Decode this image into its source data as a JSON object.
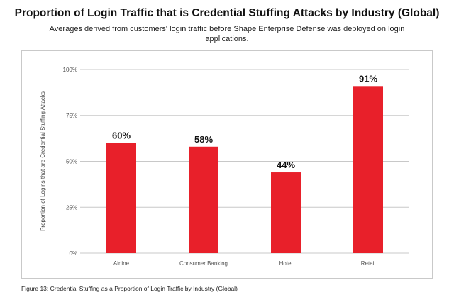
{
  "chart_data": {
    "type": "bar",
    "title": "Proportion of Login Traffic that is Credential Stuffing Attacks by Industry (Global)",
    "subtitle": "Averages derived from customers' login traffic before Shape Enterprise Defense was deployed on login applications.",
    "xlabel": "",
    "ylabel": "Proportion of Logins that are Credential Stuffing Attacks",
    "categories": [
      "Airline",
      "Consumer Banking",
      "Hotel",
      "Retail"
    ],
    "values": [
      60,
      58,
      44,
      91
    ],
    "data_labels": [
      "60%",
      "58%",
      "44%",
      "91%"
    ],
    "ylim": [
      0,
      100
    ],
    "yticks": [
      0,
      25,
      50,
      75,
      100
    ],
    "ytick_labels": [
      "0%",
      "25%",
      "50%",
      "75%",
      "100%"
    ],
    "grid": true,
    "bar_color": "#e8202a",
    "grid_color": "#c8c8c8"
  },
  "caption": "Figure 13: Credential Stuffing as a Proportion of Login Traffic by Industry (Global)"
}
